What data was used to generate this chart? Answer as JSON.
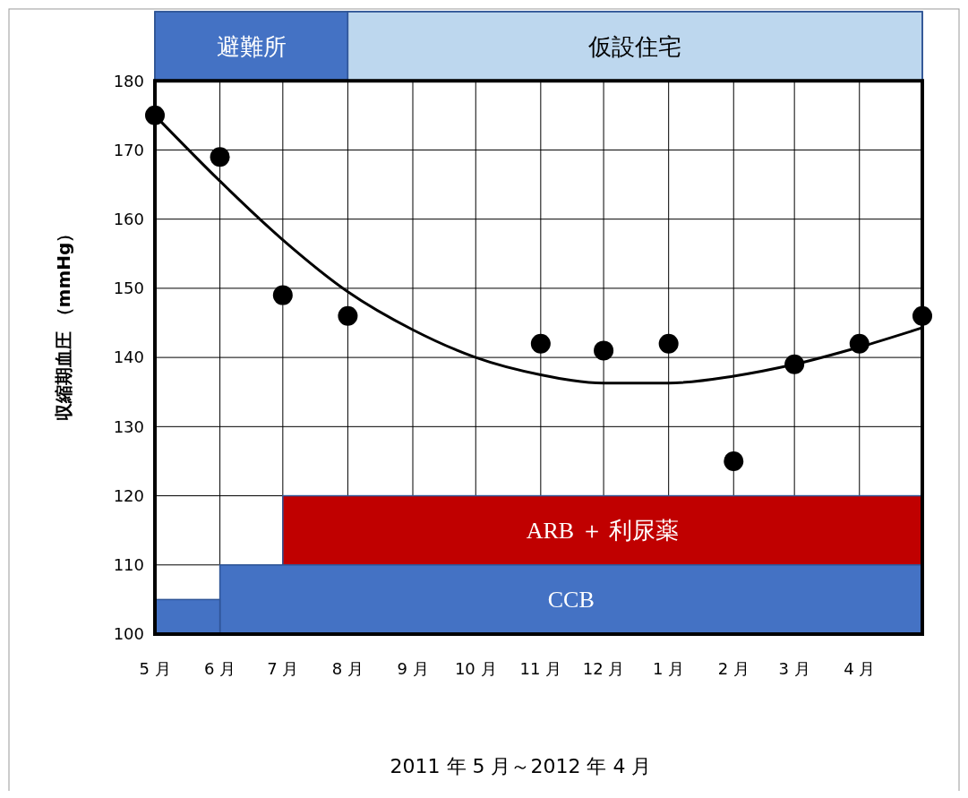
{
  "chart_data": {
    "type": "scatter",
    "xlabel": "2011 年 5 月～2012 年 4 月",
    "ylabel": "収縮期血圧 （mmHg）",
    "xlim": [
      "2011-05",
      "2012-05"
    ],
    "xticks": [
      {
        "value": "2011-05",
        "label": "5 月"
      },
      {
        "value": "2011-06",
        "label": "6 月"
      },
      {
        "value": "2011-07",
        "label": "7 月"
      },
      {
        "value": "2011-08",
        "label": "8 月"
      },
      {
        "value": "2011-09",
        "label": "9 月"
      },
      {
        "value": "2011-10",
        "label": "10 月"
      },
      {
        "value": "2011-11",
        "label": "11 月"
      },
      {
        "value": "2011-12",
        "label": "12 月"
      },
      {
        "value": "2012-01",
        "label": "1 月"
      },
      {
        "value": "2012-02",
        "label": "2 月"
      },
      {
        "value": "2012-03",
        "label": "3 月"
      },
      {
        "value": "2012-04",
        "label": "4 月"
      },
      {
        "value": "2012-05",
        "label": null
      }
    ],
    "ylim": [
      100,
      190
    ],
    "yticks": [
      100,
      110,
      120,
      130,
      140,
      150,
      160,
      170,
      180
    ],
    "grid": true,
    "series": [
      {
        "type": "scatter",
        "color": "#000000",
        "marker": "circle",
        "x": [
          "2011-05",
          "2011-06",
          "2011-07",
          "2011-08",
          "2011-11",
          "2011-12",
          "2012-01",
          "2012-02",
          "2012-03",
          "2012-04",
          "2012-05"
        ],
        "values": [
          175,
          169,
          149,
          146,
          142,
          141,
          142,
          125,
          139,
          142,
          146
        ]
      },
      {
        "type": "line",
        "color": "#000000",
        "marker": "none",
        "line_style": "solid",
        "x": [
          "2011-05",
          "2011-06",
          "2011-07",
          "2011-08",
          "2011-09",
          "2011-10",
          "2011-11",
          "2011-12",
          "2012-01",
          "2012-02",
          "2012-03",
          "2012-04",
          "2012-05"
        ],
        "values": [
          175,
          165.5,
          157,
          149.5,
          144,
          140,
          137.5,
          136.3,
          136.3,
          137.3,
          139,
          141.5,
          144.3
        ]
      }
    ],
    "bands": [
      {
        "axis": "x",
        "from": "2011-05",
        "to": "2011-08",
        "label": "避難所",
        "color": "#4472c4"
      },
      {
        "axis": "x",
        "from": "2011-08",
        "to": "2012-05",
        "label": "仮設住宅",
        "color": "#bdd7ee"
      },
      {
        "axis": "x",
        "from": "2011-07",
        "to": "2012-05",
        "label": "ARB ＋ 利尿薬",
        "color": "#c00000"
      },
      {
        "axis": "x",
        "from": "2011-06",
        "to": "2012-05",
        "label": "CCB",
        "color": "#4472c4"
      },
      {
        "axis": "x",
        "from": "2011-05",
        "to": "2011-06",
        "label": null,
        "color": "#4472c4"
      }
    ]
  }
}
